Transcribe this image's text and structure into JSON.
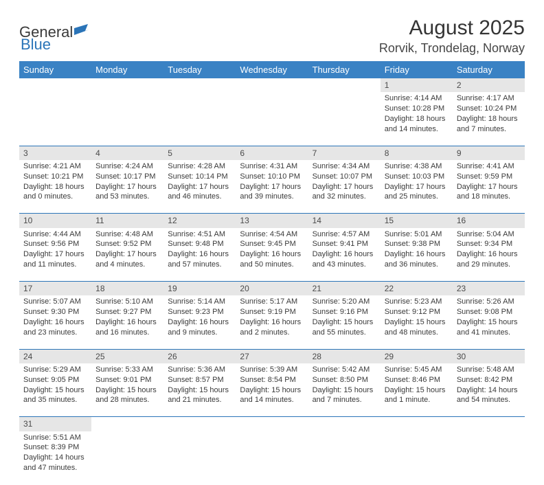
{
  "logo": {
    "text_general": "General",
    "text_blue": "Blue",
    "flag_color": "#2a74b8"
  },
  "header": {
    "month_title": "August 2025",
    "location": "Rorvik, Trondelag, Norway"
  },
  "theme": {
    "header_bg": "#3a82c4",
    "header_fg": "#ffffff",
    "daynum_bg": "#e6e6e6",
    "rule_color": "#2a74b8",
    "text_color": "#3a3a3a",
    "title_color": "#343434",
    "body_font_size_pt": 8,
    "header_font_size_pt": 10,
    "title_font_size_pt": 22
  },
  "weekdays": [
    "Sunday",
    "Monday",
    "Tuesday",
    "Wednesday",
    "Thursday",
    "Friday",
    "Saturday"
  ],
  "weeks": [
    [
      null,
      null,
      null,
      null,
      null,
      {
        "day": 1,
        "sunrise": "Sunrise: 4:14 AM",
        "sunset": "Sunset: 10:28 PM",
        "daylight": "Daylight: 18 hours and 14 minutes."
      },
      {
        "day": 2,
        "sunrise": "Sunrise: 4:17 AM",
        "sunset": "Sunset: 10:24 PM",
        "daylight": "Daylight: 18 hours and 7 minutes."
      }
    ],
    [
      {
        "day": 3,
        "sunrise": "Sunrise: 4:21 AM",
        "sunset": "Sunset: 10:21 PM",
        "daylight": "Daylight: 18 hours and 0 minutes."
      },
      {
        "day": 4,
        "sunrise": "Sunrise: 4:24 AM",
        "sunset": "Sunset: 10:17 PM",
        "daylight": "Daylight: 17 hours and 53 minutes."
      },
      {
        "day": 5,
        "sunrise": "Sunrise: 4:28 AM",
        "sunset": "Sunset: 10:14 PM",
        "daylight": "Daylight: 17 hours and 46 minutes."
      },
      {
        "day": 6,
        "sunrise": "Sunrise: 4:31 AM",
        "sunset": "Sunset: 10:10 PM",
        "daylight": "Daylight: 17 hours and 39 minutes."
      },
      {
        "day": 7,
        "sunrise": "Sunrise: 4:34 AM",
        "sunset": "Sunset: 10:07 PM",
        "daylight": "Daylight: 17 hours and 32 minutes."
      },
      {
        "day": 8,
        "sunrise": "Sunrise: 4:38 AM",
        "sunset": "Sunset: 10:03 PM",
        "daylight": "Daylight: 17 hours and 25 minutes."
      },
      {
        "day": 9,
        "sunrise": "Sunrise: 4:41 AM",
        "sunset": "Sunset: 9:59 PM",
        "daylight": "Daylight: 17 hours and 18 minutes."
      }
    ],
    [
      {
        "day": 10,
        "sunrise": "Sunrise: 4:44 AM",
        "sunset": "Sunset: 9:56 PM",
        "daylight": "Daylight: 17 hours and 11 minutes."
      },
      {
        "day": 11,
        "sunrise": "Sunrise: 4:48 AM",
        "sunset": "Sunset: 9:52 PM",
        "daylight": "Daylight: 17 hours and 4 minutes."
      },
      {
        "day": 12,
        "sunrise": "Sunrise: 4:51 AM",
        "sunset": "Sunset: 9:48 PM",
        "daylight": "Daylight: 16 hours and 57 minutes."
      },
      {
        "day": 13,
        "sunrise": "Sunrise: 4:54 AM",
        "sunset": "Sunset: 9:45 PM",
        "daylight": "Daylight: 16 hours and 50 minutes."
      },
      {
        "day": 14,
        "sunrise": "Sunrise: 4:57 AM",
        "sunset": "Sunset: 9:41 PM",
        "daylight": "Daylight: 16 hours and 43 minutes."
      },
      {
        "day": 15,
        "sunrise": "Sunrise: 5:01 AM",
        "sunset": "Sunset: 9:38 PM",
        "daylight": "Daylight: 16 hours and 36 minutes."
      },
      {
        "day": 16,
        "sunrise": "Sunrise: 5:04 AM",
        "sunset": "Sunset: 9:34 PM",
        "daylight": "Daylight: 16 hours and 29 minutes."
      }
    ],
    [
      {
        "day": 17,
        "sunrise": "Sunrise: 5:07 AM",
        "sunset": "Sunset: 9:30 PM",
        "daylight": "Daylight: 16 hours and 23 minutes."
      },
      {
        "day": 18,
        "sunrise": "Sunrise: 5:10 AM",
        "sunset": "Sunset: 9:27 PM",
        "daylight": "Daylight: 16 hours and 16 minutes."
      },
      {
        "day": 19,
        "sunrise": "Sunrise: 5:14 AM",
        "sunset": "Sunset: 9:23 PM",
        "daylight": "Daylight: 16 hours and 9 minutes."
      },
      {
        "day": 20,
        "sunrise": "Sunrise: 5:17 AM",
        "sunset": "Sunset: 9:19 PM",
        "daylight": "Daylight: 16 hours and 2 minutes."
      },
      {
        "day": 21,
        "sunrise": "Sunrise: 5:20 AM",
        "sunset": "Sunset: 9:16 PM",
        "daylight": "Daylight: 15 hours and 55 minutes."
      },
      {
        "day": 22,
        "sunrise": "Sunrise: 5:23 AM",
        "sunset": "Sunset: 9:12 PM",
        "daylight": "Daylight: 15 hours and 48 minutes."
      },
      {
        "day": 23,
        "sunrise": "Sunrise: 5:26 AM",
        "sunset": "Sunset: 9:08 PM",
        "daylight": "Daylight: 15 hours and 41 minutes."
      }
    ],
    [
      {
        "day": 24,
        "sunrise": "Sunrise: 5:29 AM",
        "sunset": "Sunset: 9:05 PM",
        "daylight": "Daylight: 15 hours and 35 minutes."
      },
      {
        "day": 25,
        "sunrise": "Sunrise: 5:33 AM",
        "sunset": "Sunset: 9:01 PM",
        "daylight": "Daylight: 15 hours and 28 minutes."
      },
      {
        "day": 26,
        "sunrise": "Sunrise: 5:36 AM",
        "sunset": "Sunset: 8:57 PM",
        "daylight": "Daylight: 15 hours and 21 minutes."
      },
      {
        "day": 27,
        "sunrise": "Sunrise: 5:39 AM",
        "sunset": "Sunset: 8:54 PM",
        "daylight": "Daylight: 15 hours and 14 minutes."
      },
      {
        "day": 28,
        "sunrise": "Sunrise: 5:42 AM",
        "sunset": "Sunset: 8:50 PM",
        "daylight": "Daylight: 15 hours and 7 minutes."
      },
      {
        "day": 29,
        "sunrise": "Sunrise: 5:45 AM",
        "sunset": "Sunset: 8:46 PM",
        "daylight": "Daylight: 15 hours and 1 minute."
      },
      {
        "day": 30,
        "sunrise": "Sunrise: 5:48 AM",
        "sunset": "Sunset: 8:42 PM",
        "daylight": "Daylight: 14 hours and 54 minutes."
      }
    ],
    [
      {
        "day": 31,
        "sunrise": "Sunrise: 5:51 AM",
        "sunset": "Sunset: 8:39 PM",
        "daylight": "Daylight: 14 hours and 47 minutes."
      },
      null,
      null,
      null,
      null,
      null,
      null
    ]
  ]
}
